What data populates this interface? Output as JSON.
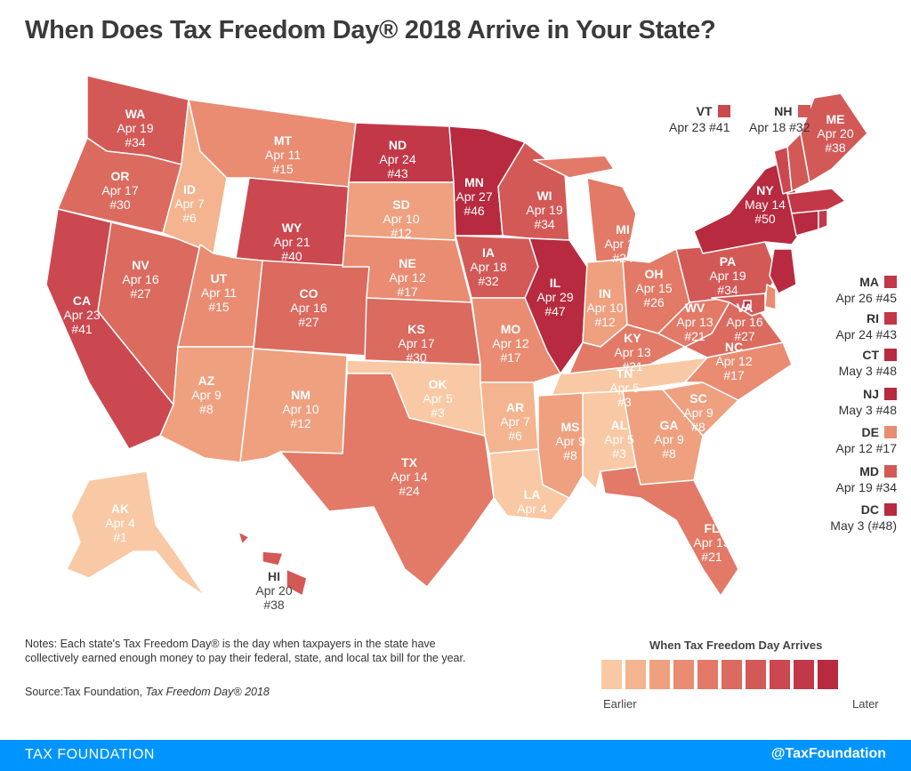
{
  "title": "When Does Tax Freedom Day® 2018 Arrive in Your State?",
  "colors": {
    "scale": [
      "#f8c9a4",
      "#f3b48f",
      "#eea07f",
      "#e98c72",
      "#e27a67",
      "#db6a5f",
      "#d35957",
      "#cb4850",
      "#c23848",
      "#b82a3f"
    ],
    "background": "#ffffff",
    "footer": "#0094ff"
  },
  "states": {
    "WA": {
      "abbr": "WA",
      "date": "Apr 19",
      "rank": "#34",
      "level": 6
    },
    "OR": {
      "abbr": "OR",
      "date": "Apr 17",
      "rank": "#30",
      "level": 5
    },
    "CA": {
      "abbr": "CA",
      "date": "Apr 23",
      "rank": "#41",
      "level": 7
    },
    "NV": {
      "abbr": "NV",
      "date": "Apr 16",
      "rank": "#27",
      "level": 5
    },
    "ID": {
      "abbr": "ID",
      "date": "Apr 7",
      "rank": "#6",
      "level": 1
    },
    "MT": {
      "abbr": "MT",
      "date": "Apr 11",
      "rank": "#15",
      "level": 3
    },
    "WY": {
      "abbr": "WY",
      "date": "Apr 21",
      "rank": "#40",
      "level": 7
    },
    "UT": {
      "abbr": "UT",
      "date": "Apr 11",
      "rank": "#15",
      "level": 3
    },
    "AZ": {
      "abbr": "AZ",
      "date": "Apr 9",
      "rank": "#8",
      "level": 2
    },
    "CO": {
      "abbr": "CO",
      "date": "Apr 16",
      "rank": "#27",
      "level": 5
    },
    "NM": {
      "abbr": "NM",
      "date": "Apr 10",
      "rank": "#12",
      "level": 2
    },
    "ND": {
      "abbr": "ND",
      "date": "Apr 24",
      "rank": "#43",
      "level": 8
    },
    "SD": {
      "abbr": "SD",
      "date": "Apr 10",
      "rank": "#12",
      "level": 2
    },
    "NE": {
      "abbr": "NE",
      "date": "Apr 12",
      "rank": "#17",
      "level": 3
    },
    "KS": {
      "abbr": "KS",
      "date": "Apr 17",
      "rank": "#30",
      "level": 5
    },
    "OK": {
      "abbr": "OK",
      "date": "Apr 5",
      "rank": "#3",
      "level": 0
    },
    "TX": {
      "abbr": "TX",
      "date": "Apr 14",
      "rank": "#24",
      "level": 4
    },
    "MN": {
      "abbr": "MN",
      "date": "Apr 27",
      "rank": "#46",
      "level": 9
    },
    "IA": {
      "abbr": "IA",
      "date": "Apr 18",
      "rank": "#32",
      "level": 6
    },
    "MO": {
      "abbr": "MO",
      "date": "Apr 12",
      "rank": "#17",
      "level": 3
    },
    "AR": {
      "abbr": "AR",
      "date": "Apr 7",
      "rank": "#6",
      "level": 1
    },
    "LA": {
      "abbr": "LA",
      "date": "Apr 4",
      "rank": "#1",
      "level": 0
    },
    "WI": {
      "abbr": "WI",
      "date": "Apr 19",
      "rank": "#34",
      "level": 6
    },
    "IL": {
      "abbr": "IL",
      "date": "Apr 29",
      "rank": "#47",
      "level": 9
    },
    "MI": {
      "abbr": "MI",
      "date": "Apr 14",
      "rank": "#24",
      "level": 4
    },
    "IN": {
      "abbr": "IN",
      "date": "Apr 10",
      "rank": "#12",
      "level": 2
    },
    "OH": {
      "abbr": "OH",
      "date": "Apr 15",
      "rank": "#26",
      "level": 4
    },
    "KY": {
      "abbr": "KY",
      "date": "Apr 13",
      "rank": "#21",
      "level": 4
    },
    "TN": {
      "abbr": "TN",
      "date": "Apr 5",
      "rank": "#3",
      "level": 0
    },
    "MS": {
      "abbr": "MS",
      "date": "Apr 9",
      "rank": "#8",
      "level": 2
    },
    "AL": {
      "abbr": "AL",
      "date": "Apr 5",
      "rank": "#3",
      "level": 0
    },
    "GA": {
      "abbr": "GA",
      "date": "Apr 9",
      "rank": "#8",
      "level": 2
    },
    "FL": {
      "abbr": "FL",
      "date": "Apr 13",
      "rank": "#21",
      "level": 4
    },
    "SC": {
      "abbr": "SC",
      "date": "Apr 9",
      "rank": "#8",
      "level": 2
    },
    "NC": {
      "abbr": "NC",
      "date": "Apr 12",
      "rank": "#17",
      "level": 3
    },
    "VA": {
      "abbr": "VA",
      "date": "Apr 16",
      "rank": "#27",
      "level": 5
    },
    "WV": {
      "abbr": "WV",
      "date": "Apr 13",
      "rank": "#21",
      "level": 4
    },
    "PA": {
      "abbr": "PA",
      "date": "Apr 19",
      "rank": "#34",
      "level": 6
    },
    "NY": {
      "abbr": "NY",
      "date": "May 14",
      "rank": "#50",
      "level": 9
    },
    "ME": {
      "abbr": "ME",
      "date": "Apr 20",
      "rank": "#38",
      "level": 6
    },
    "AK": {
      "abbr": "AK",
      "date": "Apr 4",
      "rank": "#1",
      "level": 0
    },
    "HI": {
      "abbr": "HI",
      "date": "Apr 20",
      "rank": "#38",
      "level": 6
    }
  },
  "callouts": {
    "VT": {
      "abbr": "VT",
      "text": "Apr 23 #41",
      "level": 7
    },
    "NH": {
      "abbr": "NH",
      "text": "Apr 18 #32",
      "level": 6
    },
    "MA": {
      "abbr": "MA",
      "text": "Apr 26 #45",
      "level": 8
    },
    "RI": {
      "abbr": "RI",
      "text": "Apr 24 #43",
      "level": 8
    },
    "CT": {
      "abbr": "CT",
      "text": "May 3 #48",
      "level": 9
    },
    "NJ": {
      "abbr": "NJ",
      "text": "May 3 #48",
      "level": 9
    },
    "DE": {
      "abbr": "DE",
      "text": "Apr 12 #17",
      "level": 3
    },
    "MD": {
      "abbr": "MD",
      "text": "Apr 19 #34",
      "level": 6
    },
    "DC": {
      "abbr": "DC",
      "text": "May 3 (#48)",
      "level": 9
    }
  },
  "notes": "Notes: Each state's Tax Freedom Day® is the day when taxpayers in the state have collectively earned enough money to pay their federal, state, and local tax bill for the year.",
  "source_prefix": "Source:Tax Foundation, ",
  "source_title": "Tax Freedom Day® 2018",
  "legend": {
    "title": "When Tax Freedom Day Arrives",
    "low": "Earlier",
    "high": "Later"
  },
  "footer": {
    "brand": "TAX FOUNDATION",
    "handle": "@TaxFoundation"
  }
}
